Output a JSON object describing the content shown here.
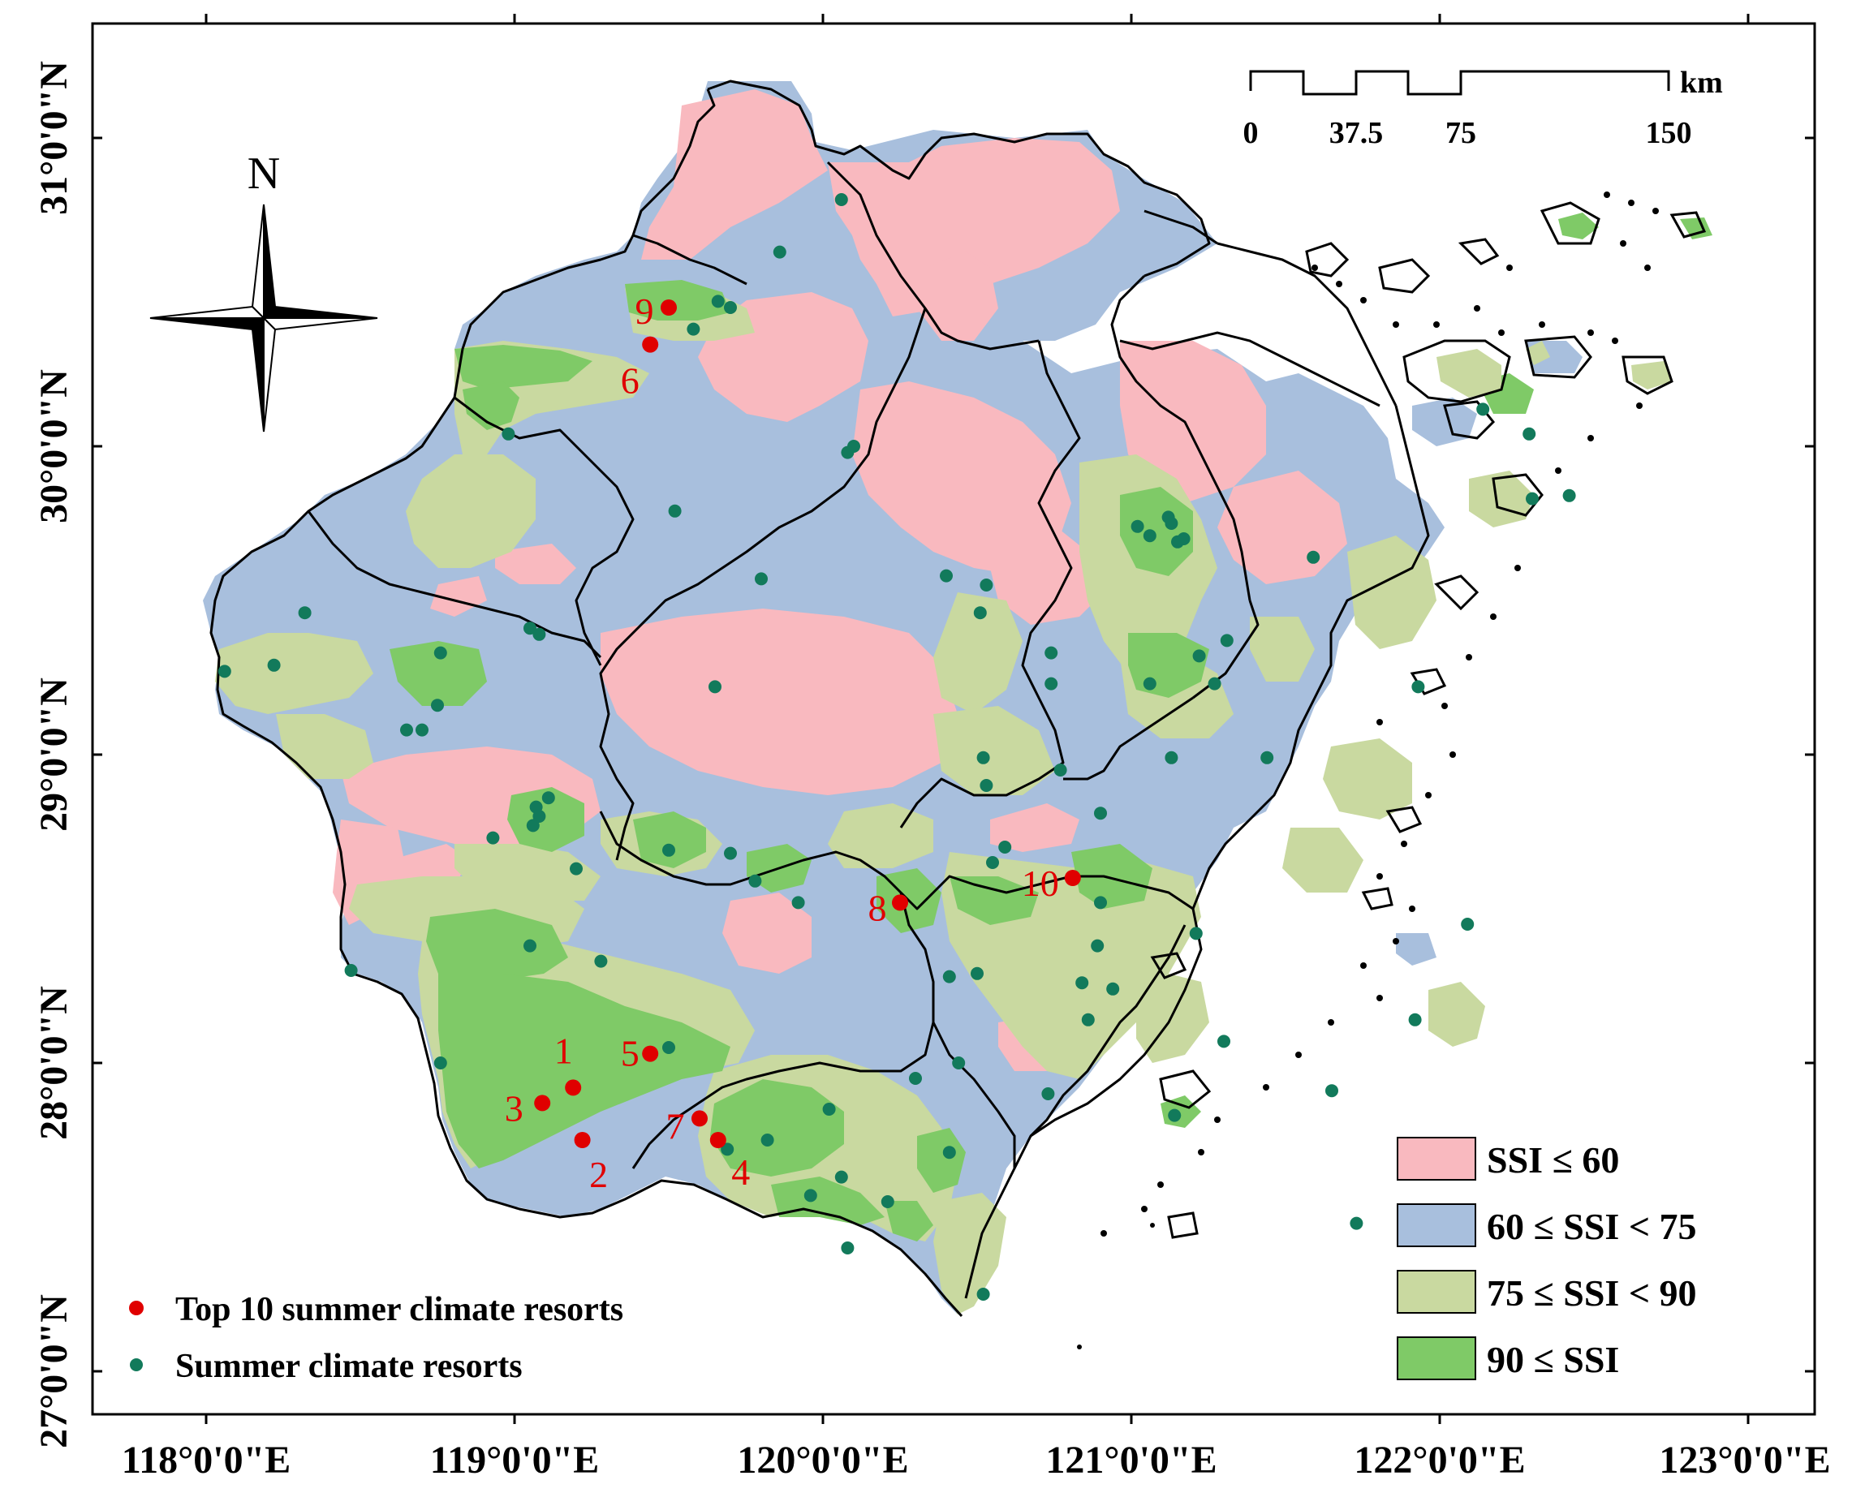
{
  "colors": {
    "ssi_le_60": "#f9b9bf",
    "ssi_60_75": "#a8bfdd",
    "ssi_75_90": "#c9d9a0",
    "ssi_ge_90": "#7fca67",
    "top10_point": "#e00000",
    "resort_point": "#127a5b",
    "top10_label": "#e00000"
  },
  "latitude_labels": [
    "31°0'0\"N",
    "30°0'0\"N",
    "29°0'0\"N",
    "28°0'0\"N",
    "27°0'0\"N"
  ],
  "longitude_labels": [
    "118°0'0\"E",
    "119°0'0\"E",
    "120°0'0\"E",
    "121°0'0\"E",
    "122°0'0\"E",
    "123°0'0\"E"
  ],
  "north_arrow": {
    "label": "N",
    "icon": "compass-rose-icon"
  },
  "scale_bar": {
    "unit": "km",
    "ticks": [
      "0",
      "37.5",
      "75",
      "150"
    ]
  },
  "legend_ssi": [
    {
      "label": "SSI ≤ 60",
      "color": "#f9b9bf"
    },
    {
      "label": "60 ≤ SSI < 75",
      "color": "#a8bfdd"
    },
    {
      "label": "75 ≤ SSI < 90",
      "color": "#c9d9a0"
    },
    {
      "label": "90 ≤ SSI",
      "color": "#7fca67"
    }
  ],
  "legend_points": [
    {
      "label": "Top 10 summer climate resorts",
      "color": "#e00000"
    },
    {
      "label": "Summer climate resorts",
      "color": "#127a5b"
    }
  ],
  "top10_resorts": [
    {
      "rank": "1",
      "lon": 119.19,
      "lat": 27.92
    },
    {
      "rank": "2",
      "lon": 119.22,
      "lat": 27.75
    },
    {
      "rank": "3",
      "lon": 119.09,
      "lat": 27.87
    },
    {
      "rank": "4",
      "lon": 119.66,
      "lat": 27.75
    },
    {
      "rank": "5",
      "lon": 119.44,
      "lat": 28.03
    },
    {
      "rank": "6",
      "lon": 119.44,
      "lat": 30.33
    },
    {
      "rank": "7",
      "lon": 119.6,
      "lat": 27.82
    },
    {
      "rank": "8",
      "lon": 120.25,
      "lat": 28.52
    },
    {
      "rank": "9",
      "lon": 119.5,
      "lat": 30.45
    },
    {
      "rank": "10",
      "lon": 120.81,
      "lat": 28.6
    }
  ],
  "resorts": [
    [
      120.06,
      30.8
    ],
    [
      119.86,
      30.63
    ],
    [
      119.7,
      30.45
    ],
    [
      119.66,
      30.47
    ],
    [
      119.58,
      30.38
    ],
    [
      118.98,
      30.04
    ],
    [
      120.1,
      30.0
    ],
    [
      120.08,
      29.98
    ],
    [
      119.52,
      29.79
    ],
    [
      119.8,
      29.57
    ],
    [
      118.32,
      29.46
    ],
    [
      118.06,
      29.27
    ],
    [
      118.22,
      29.29
    ],
    [
      118.76,
      29.33
    ],
    [
      118.75,
      29.16
    ],
    [
      118.7,
      29.08
    ],
    [
      118.65,
      29.08
    ],
    [
      119.05,
      29.41
    ],
    [
      119.08,
      29.39
    ],
    [
      119.65,
      29.22
    ],
    [
      120.4,
      29.58
    ],
    [
      120.53,
      29.55
    ],
    [
      120.51,
      29.46
    ],
    [
      120.74,
      29.33
    ],
    [
      120.74,
      29.23
    ],
    [
      121.02,
      29.74
    ],
    [
      121.06,
      29.71
    ],
    [
      121.12,
      29.77
    ],
    [
      121.13,
      29.75
    ],
    [
      121.17,
      29.7
    ],
    [
      121.15,
      29.69
    ],
    [
      121.59,
      29.64
    ],
    [
      121.22,
      29.32
    ],
    [
      121.27,
      29.23
    ],
    [
      121.06,
      29.23
    ],
    [
      121.31,
      29.37
    ],
    [
      121.93,
      29.22
    ],
    [
      122.14,
      30.12
    ],
    [
      122.29,
      30.04
    ],
    [
      122.42,
      29.84
    ],
    [
      122.3,
      29.83
    ],
    [
      121.13,
      28.99
    ],
    [
      121.44,
      28.99
    ],
    [
      120.77,
      28.95
    ],
    [
      120.52,
      28.99
    ],
    [
      120.53,
      28.9
    ],
    [
      120.59,
      28.7
    ],
    [
      120.9,
      28.81
    ],
    [
      120.9,
      28.52
    ],
    [
      120.89,
      28.38
    ],
    [
      120.84,
      28.26
    ],
    [
      120.86,
      28.14
    ],
    [
      121.21,
      28.42
    ],
    [
      121.3,
      28.07
    ],
    [
      121.14,
      27.83
    ],
    [
      122.09,
      28.45
    ],
    [
      121.92,
      28.14
    ],
    [
      120.55,
      28.65
    ],
    [
      120.5,
      28.29
    ],
    [
      120.41,
      28.28
    ],
    [
      120.44,
      28.0
    ],
    [
      120.73,
      27.9
    ],
    [
      120.3,
      27.95
    ],
    [
      120.41,
      27.71
    ],
    [
      120.52,
      27.25
    ],
    [
      119.2,
      28.63
    ],
    [
      119.06,
      28.77
    ],
    [
      118.93,
      28.73
    ],
    [
      119.08,
      28.8
    ],
    [
      119.07,
      28.83
    ],
    [
      119.11,
      28.86
    ],
    [
      118.76,
      28.0
    ],
    [
      119.05,
      28.38
    ],
    [
      119.28,
      28.33
    ],
    [
      119.5,
      28.05
    ],
    [
      119.5,
      28.69
    ],
    [
      119.7,
      28.68
    ],
    [
      119.78,
      28.59
    ],
    [
      119.92,
      28.52
    ],
    [
      119.69,
      27.72
    ],
    [
      119.82,
      27.75
    ],
    [
      120.02,
      27.85
    ],
    [
      120.06,
      27.63
    ],
    [
      119.96,
      27.57
    ],
    [
      120.21,
      27.55
    ],
    [
      120.08,
      27.4
    ],
    [
      118.47,
      28.3
    ],
    [
      121.73,
      27.48
    ],
    [
      120.94,
      28.24
    ],
    [
      121.65,
      27.91
    ]
  ]
}
